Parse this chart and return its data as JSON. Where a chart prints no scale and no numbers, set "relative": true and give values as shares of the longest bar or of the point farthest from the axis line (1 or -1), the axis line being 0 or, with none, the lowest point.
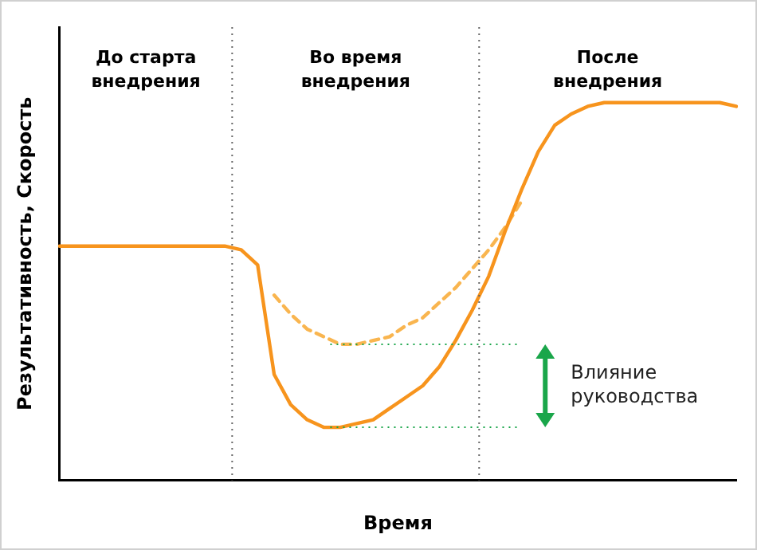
{
  "chart_data": {
    "type": "line",
    "relative": true,
    "xlabel": "Время",
    "ylabel": "Результативность, Скорость",
    "legend": false,
    "grid": false,
    "marker": "none",
    "categories": [
      null,
      null,
      null,
      null,
      null,
      null,
      null,
      null,
      null,
      null,
      null,
      null,
      null,
      null,
      null,
      null,
      null,
      null,
      null,
      null,
      null,
      null,
      null,
      null,
      null,
      null,
      null,
      null,
      null,
      null,
      null,
      null,
      null,
      null,
      null,
      null,
      null,
      null,
      null,
      null,
      null,
      null
    ],
    "series": [
      {
        "color": "#f7941d",
        "line_style": "solid",
        "values": [
          0.62,
          0.62,
          0.62,
          0.62,
          0.62,
          0.62,
          0.62,
          0.62,
          0.62,
          0.62,
          0.62,
          0.61,
          0.57,
          0.28,
          0.2,
          0.16,
          0.14,
          0.14,
          0.15,
          0.16,
          0.19,
          0.22,
          0.25,
          0.3,
          0.37,
          0.45,
          0.54,
          0.66,
          0.77,
          0.87,
          0.94,
          0.97,
          0.99,
          1,
          1,
          1,
          1,
          1,
          1,
          1,
          1,
          0.99
        ]
      },
      {
        "color": "#f9b54f",
        "line_style": "dashed",
        "values": [
          null,
          null,
          null,
          null,
          null,
          null,
          null,
          null,
          null,
          null,
          null,
          null,
          null,
          0.49,
          0.44,
          0.4,
          0.38,
          0.36,
          0.36,
          0.37,
          0.38,
          0.41,
          0.43,
          0.47,
          0.51,
          0.56,
          0.61,
          0.67,
          0.74,
          null,
          null,
          null,
          null,
          null,
          null,
          null,
          null,
          null,
          null,
          null,
          null,
          null
        ]
      }
    ],
    "annotations": [
      "До старта внедрения",
      "Во время внедрения",
      "После внедрения"
    ],
    "ref_lines": [
      {
        "axis": "y",
        "value": 0.36,
        "color": "#1aa64a",
        "line_style": "dotted"
      },
      {
        "axis": "y",
        "value": 0.14,
        "color": "#1aa64a",
        "line_style": "dotted",
        "label": "Влияние руководства"
      }
    ]
  }
}
